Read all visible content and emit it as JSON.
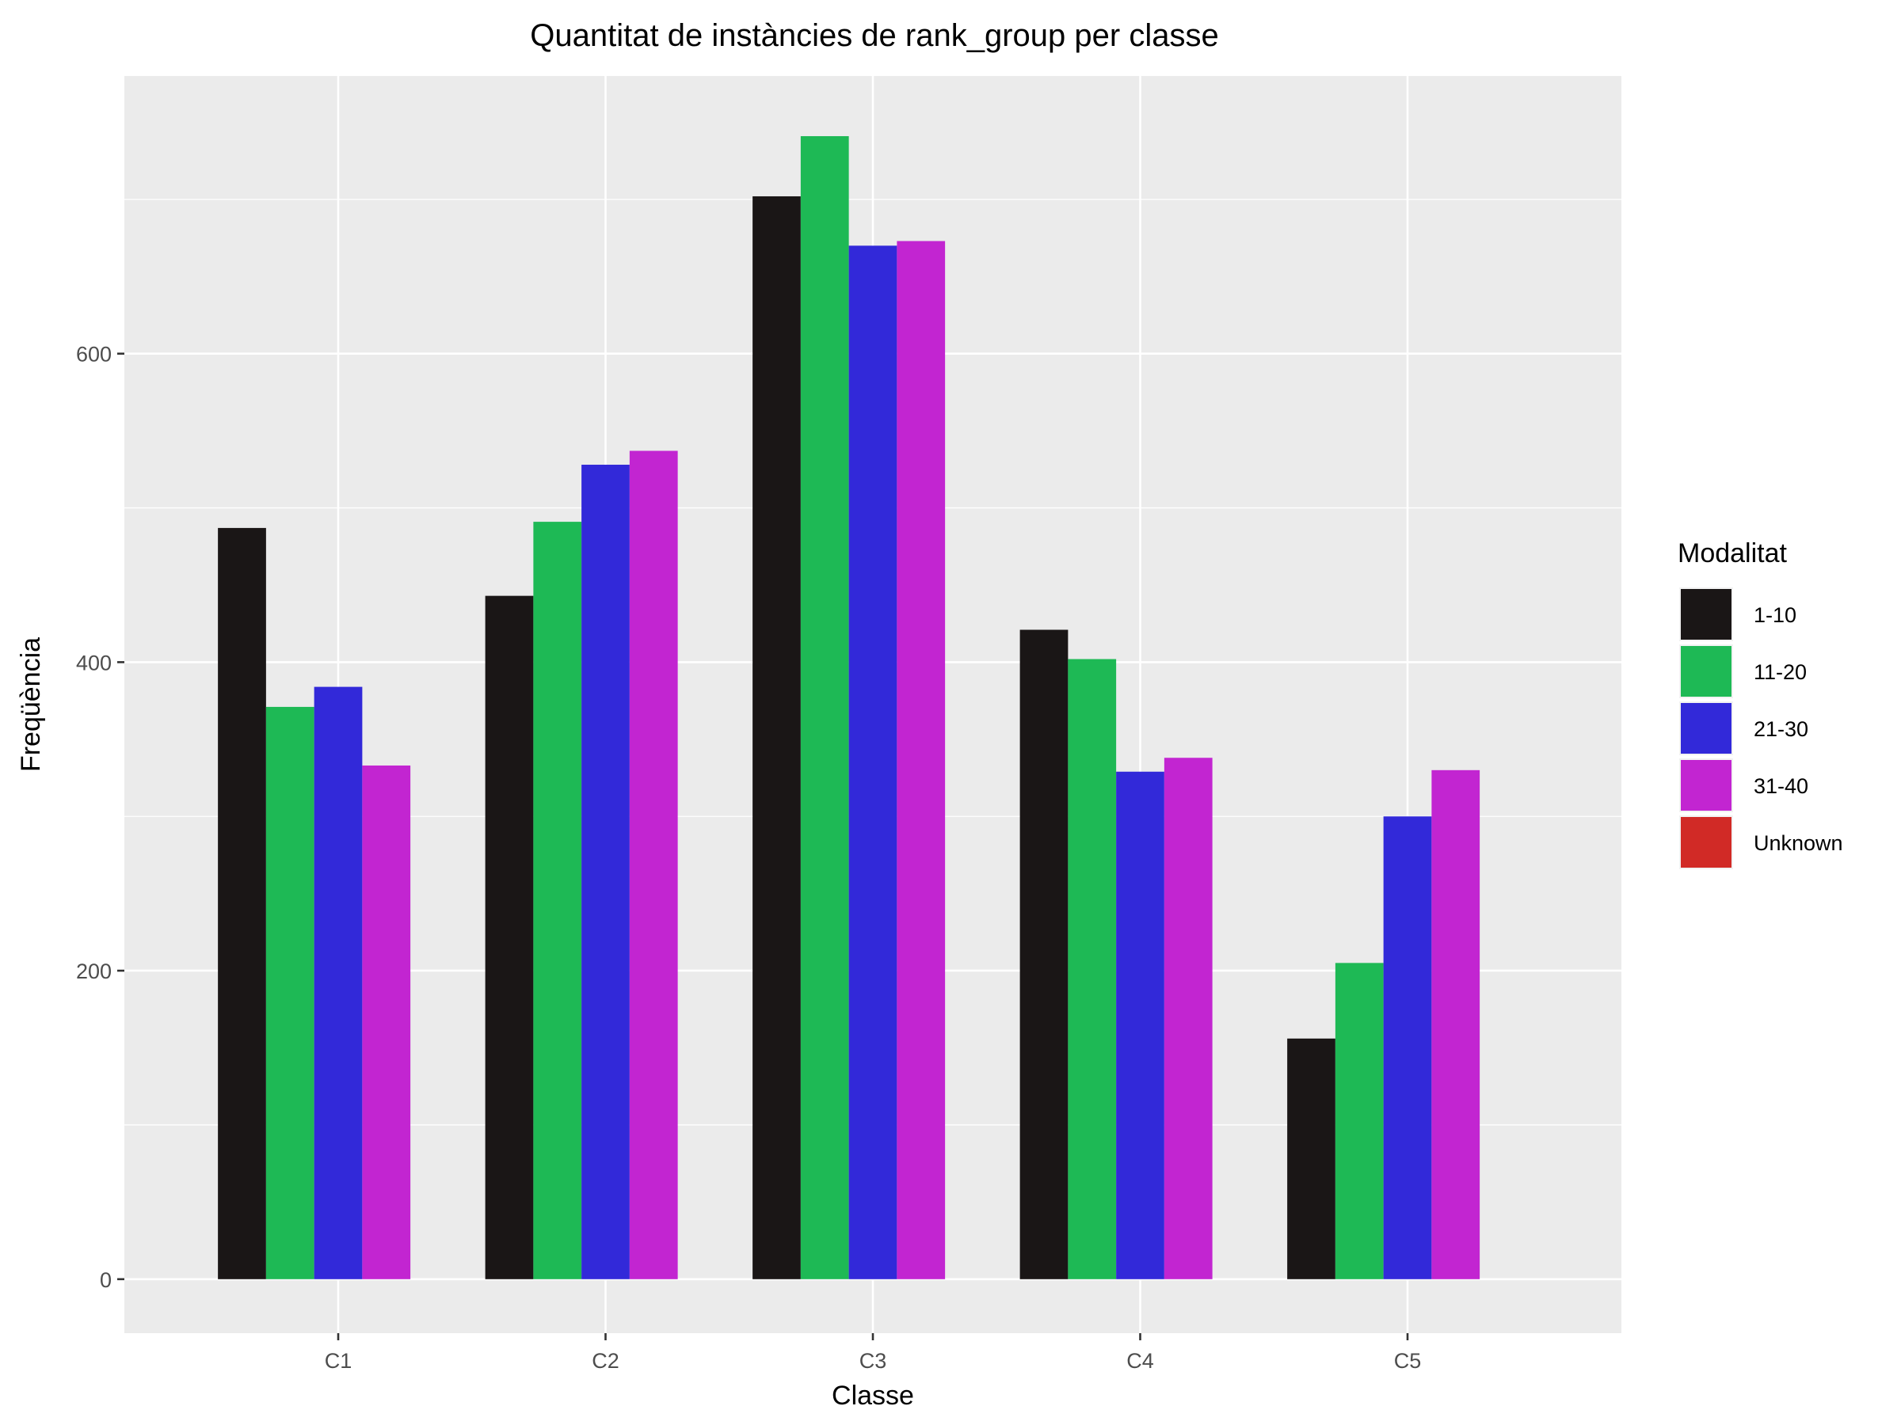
{
  "chart_data": {
    "type": "bar",
    "title": "Quantitat de instàncies de rank_group per classe",
    "xlabel": "Classe",
    "ylabel": "Freqüència",
    "categories": [
      "C1",
      "C2",
      "C3",
      "C4",
      "C5"
    ],
    "yticks": [
      "0",
      "200",
      "400",
      "600"
    ],
    "ylim": [
      -35,
      780
    ],
    "legend": {
      "title": "Modalitat",
      "position": "right"
    },
    "grid": true,
    "series": [
      {
        "name": "1-10",
        "color": "#1a1616",
        "values": [
          487,
          443,
          702,
          421,
          156
        ]
      },
      {
        "name": "11-20",
        "color": "#1eb955",
        "values": [
          371,
          491,
          741,
          402,
          205
        ]
      },
      {
        "name": "21-30",
        "color": "#3229d9",
        "values": [
          384,
          528,
          670,
          329,
          300
        ]
      },
      {
        "name": "31-40",
        "color": "#c225d1",
        "values": [
          333,
          537,
          673,
          338,
          330
        ]
      },
      {
        "name": "Unknown",
        "color": "#d12a26",
        "values": [
          0,
          0,
          0,
          0,
          0
        ]
      }
    ]
  }
}
